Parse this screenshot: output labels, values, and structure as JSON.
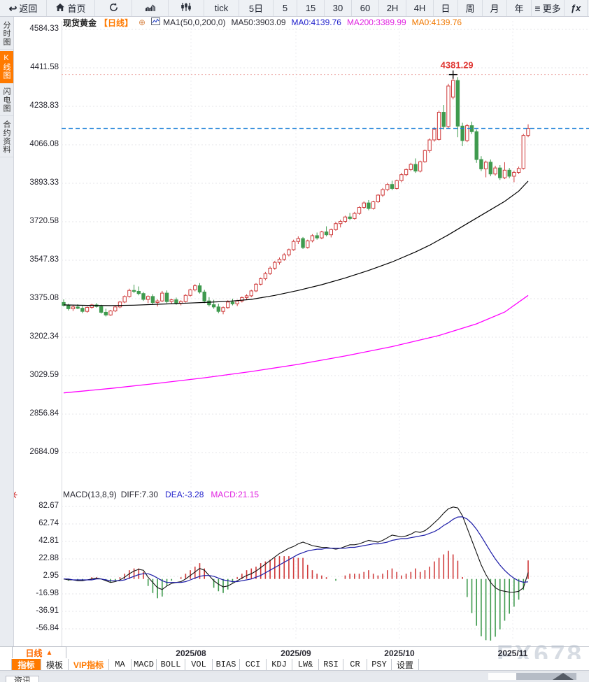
{
  "colors": {
    "up": "#cf3a3a",
    "down": "#3f9a4e",
    "ma50": "#000000",
    "ma200": "#ff00ff",
    "diff": "#111111",
    "dea": "#1a1aa6",
    "price_line": "#1b7fd8",
    "accent": "#ff7a00"
  },
  "toolbar": {
    "items": [
      {
        "label": "返回"
      },
      {
        "label": "首页"
      },
      {
        "label": ""
      },
      {
        "label": ""
      },
      {
        "label": ""
      },
      {
        "label": "tick"
      },
      {
        "label": "5日"
      },
      {
        "label": "5"
      },
      {
        "label": "15"
      },
      {
        "label": "30"
      },
      {
        "label": "60"
      },
      {
        "label": "2H"
      },
      {
        "label": "4H"
      },
      {
        "label": "日"
      },
      {
        "label": "周"
      },
      {
        "label": "月"
      },
      {
        "label": "年"
      },
      {
        "label": "更多"
      },
      {
        "label": "ƒx"
      },
      {
        "label": "⊖"
      },
      {
        "label": "⊕"
      }
    ],
    "more_icon": "≡",
    "back_icon": "↩"
  },
  "sidebar": {
    "items": [
      {
        "label": "分时图",
        "active": false
      },
      {
        "label": "K线图",
        "active": true
      },
      {
        "label": "闪电图",
        "active": false
      },
      {
        "label": "合约资料",
        "active": false
      }
    ]
  },
  "chart_header": {
    "symbol": "现货黄金",
    "period": "【日线】",
    "plus_icon": "⊕",
    "ma_params": "MA1(50,0,200,0)",
    "ma50": "MA50:3903.09",
    "ma0_blue": "MA0:4139.76",
    "ma200": "MA200:3389.99",
    "ma0_orange": "MA0:4139.76"
  },
  "macd_header": {
    "params": "MACD(13,8,9)",
    "diff": "DIFF:7.30",
    "dea": "DEA:-3.28",
    "macd": "MACD:21.15"
  },
  "bottom": {
    "period": "日线",
    "period_arrow": "▲",
    "news_tab": "资讯",
    "tabs": [
      {
        "label": "指标"
      },
      {
        "label": "模板"
      },
      {
        "label": "VIP指标"
      },
      {
        "label": "MA"
      },
      {
        "label": "MACD"
      },
      {
        "label": "BOLL"
      },
      {
        "label": "VOL"
      },
      {
        "label": "BIAS"
      },
      {
        "label": "CCI"
      },
      {
        "label": "KDJ"
      },
      {
        "label": "LW&"
      },
      {
        "label": "RSI"
      },
      {
        "label": "CR"
      },
      {
        "label": "PSY"
      },
      {
        "label": "设置"
      }
    ]
  },
  "watermark": "FX678",
  "chart_data": [
    {
      "type": "candlestick",
      "title": "现货黄金 日线",
      "yticks": [
        "4584.33",
        "4411.58",
        "4238.83",
        "4066.08",
        "3893.33",
        "3720.58",
        "3547.83",
        "3375.08",
        "3202.34",
        "3029.59",
        "2856.84",
        "2684.09"
      ],
      "ylim": [
        2684.09,
        4584.33
      ],
      "x_tick_labels": [
        "2025/08",
        "2025/09",
        "2025/10",
        "2025/11"
      ],
      "annotation_high": "4381.29",
      "high_value": 4381.29,
      "high_index": 83,
      "last_close": 4139.76,
      "legend": [
        "MA50 black",
        "MA200 magenta",
        "last-price dashed blue"
      ],
      "candles": [
        [
          3358,
          3372,
          3340,
          3345
        ],
        [
          3345,
          3352,
          3322,
          3330
        ],
        [
          3330,
          3345,
          3320,
          3338
        ],
        [
          3338,
          3350,
          3328,
          3332
        ],
        [
          3332,
          3342,
          3310,
          3318
        ],
        [
          3318,
          3340,
          3312,
          3336
        ],
        [
          3336,
          3352,
          3330,
          3347
        ],
        [
          3347,
          3355,
          3335,
          3340
        ],
        [
          3340,
          3348,
          3308,
          3314
        ],
        [
          3314,
          3330,
          3295,
          3302
        ],
        [
          3302,
          3325,
          3298,
          3320
        ],
        [
          3320,
          3342,
          3315,
          3338
        ],
        [
          3338,
          3365,
          3332,
          3360
        ],
        [
          3360,
          3390,
          3355,
          3385
        ],
        [
          3385,
          3420,
          3380,
          3412
        ],
        [
          3412,
          3438,
          3400,
          3408
        ],
        [
          3408,
          3430,
          3390,
          3398
        ],
        [
          3398,
          3405,
          3365,
          3372
        ],
        [
          3372,
          3390,
          3355,
          3385
        ],
        [
          3385,
          3395,
          3350,
          3358
        ],
        [
          3358,
          3372,
          3340,
          3365
        ],
        [
          3365,
          3410,
          3360,
          3400
        ],
        [
          3400,
          3412,
          3355,
          3362
        ],
        [
          3362,
          3375,
          3352,
          3370
        ],
        [
          3370,
          3380,
          3348,
          3355
        ],
        [
          3355,
          3368,
          3345,
          3362
        ],
        [
          3362,
          3395,
          3358,
          3390
        ],
        [
          3390,
          3420,
          3385,
          3415
        ],
        [
          3415,
          3440,
          3408,
          3433
        ],
        [
          3433,
          3445,
          3398,
          3405
        ],
        [
          3405,
          3415,
          3355,
          3365
        ],
        [
          3365,
          3382,
          3340,
          3348
        ],
        [
          3348,
          3370,
          3330,
          3338
        ],
        [
          3338,
          3352,
          3310,
          3318
        ],
        [
          3318,
          3340,
          3305,
          3335
        ],
        [
          3335,
          3368,
          3330,
          3360
        ],
        [
          3360,
          3375,
          3345,
          3352
        ],
        [
          3352,
          3370,
          3342,
          3365
        ],
        [
          3365,
          3385,
          3358,
          3380
        ],
        [
          3380,
          3395,
          3370,
          3388
        ],
        [
          3388,
          3415,
          3382,
          3410
        ],
        [
          3410,
          3445,
          3405,
          3440
        ],
        [
          3440,
          3470,
          3435,
          3465
        ],
        [
          3465,
          3495,
          3458,
          3488
        ],
        [
          3488,
          3520,
          3482,
          3512
        ],
        [
          3512,
          3545,
          3505,
          3538
        ],
        [
          3538,
          3560,
          3528,
          3552
        ],
        [
          3552,
          3580,
          3545,
          3572
        ],
        [
          3572,
          3600,
          3565,
          3595
        ],
        [
          3595,
          3640,
          3590,
          3632
        ],
        [
          3632,
          3655,
          3620,
          3645
        ],
        [
          3645,
          3652,
          3598,
          3605
        ],
        [
          3605,
          3640,
          3600,
          3635
        ],
        [
          3635,
          3665,
          3628,
          3658
        ],
        [
          3658,
          3672,
          3640,
          3648
        ],
        [
          3648,
          3680,
          3642,
          3675
        ],
        [
          3675,
          3700,
          3655,
          3662
        ],
        [
          3662,
          3690,
          3650,
          3685
        ],
        [
          3685,
          3720,
          3680,
          3712
        ],
        [
          3712,
          3730,
          3695,
          3722
        ],
        [
          3722,
          3748,
          3715,
          3742
        ],
        [
          3742,
          3760,
          3728,
          3735
        ],
        [
          3735,
          3765,
          3730,
          3758
        ],
        [
          3758,
          3790,
          3752,
          3785
        ],
        [
          3785,
          3812,
          3778,
          3805
        ],
        [
          3805,
          3818,
          3772,
          3780
        ],
        [
          3780,
          3815,
          3775,
          3810
        ],
        [
          3810,
          3845,
          3805,
          3840
        ],
        [
          3840,
          3872,
          3832,
          3865
        ],
        [
          3865,
          3895,
          3858,
          3888
        ],
        [
          3888,
          3905,
          3862,
          3870
        ],
        [
          3870,
          3910,
          3865,
          3905
        ],
        [
          3905,
          3940,
          3898,
          3932
        ],
        [
          3932,
          3960,
          3925,
          3955
        ],
        [
          3955,
          3985,
          3948,
          3978
        ],
        [
          3978,
          4005,
          3940,
          3948
        ],
        [
          3948,
          3995,
          3942,
          3990
        ],
        [
          3990,
          4045,
          3985,
          4040
        ],
        [
          4040,
          4095,
          4030,
          4088
        ],
        [
          4088,
          4145,
          4080,
          4135
        ],
        [
          4090,
          4220,
          4085,
          4212
        ],
        [
          4212,
          4245,
          4135,
          4148
        ],
        [
          4148,
          4340,
          4142,
          4330
        ],
        [
          4280,
          4381.29,
          4270,
          4355
        ],
        [
          4355,
          4370,
          4100,
          4150
        ],
        [
          4150,
          4165,
          4060,
          4085
        ],
        [
          4085,
          4160,
          4078,
          4152
        ],
        [
          4152,
          4170,
          4115,
          4125
        ],
        [
          4125,
          4135,
          3985,
          4000
        ],
        [
          4000,
          4015,
          3948,
          3958
        ],
        [
          3958,
          3995,
          3920,
          3988
        ],
        [
          3988,
          4000,
          3925,
          3935
        ],
        [
          3935,
          3972,
          3928,
          3962
        ],
        [
          3962,
          3975,
          3908,
          3918
        ],
        [
          3918,
          3988,
          3912,
          3952
        ],
        [
          3952,
          3962,
          3916,
          3925
        ],
        [
          3925,
          3950,
          3898,
          3942
        ],
        [
          3942,
          3968,
          3935,
          3960
        ],
        [
          3960,
          4115,
          3955,
          4108
        ],
        [
          4108,
          4158,
          4100,
          4139.76
        ]
      ],
      "ma50_points": [
        [
          0,
          3347
        ],
        [
          5,
          3345
        ],
        [
          10,
          3344
        ],
        [
          15,
          3346
        ],
        [
          20,
          3350
        ],
        [
          25,
          3354
        ],
        [
          30,
          3358
        ],
        [
          35,
          3363
        ],
        [
          40,
          3372
        ],
        [
          45,
          3390
        ],
        [
          50,
          3412
        ],
        [
          55,
          3438
        ],
        [
          60,
          3468
        ],
        [
          65,
          3502
        ],
        [
          70,
          3540
        ],
        [
          75,
          3585
        ],
        [
          78,
          3615
        ],
        [
          82,
          3662
        ],
        [
          86,
          3712
        ],
        [
          90,
          3762
        ],
        [
          94,
          3812
        ],
        [
          97,
          3858
        ],
        [
          99,
          3903
        ]
      ],
      "ma200_points": [
        [
          0,
          2952
        ],
        [
          10,
          2972
        ],
        [
          20,
          2995
        ],
        [
          30,
          3020
        ],
        [
          40,
          3048
        ],
        [
          50,
          3080
        ],
        [
          60,
          3118
        ],
        [
          70,
          3160
        ],
        [
          80,
          3210
        ],
        [
          88,
          3262
        ],
        [
          94,
          3315
        ],
        [
          99,
          3390
        ]
      ]
    },
    {
      "type": "macd",
      "params": [
        13,
        8,
        9
      ],
      "yticks": [
        "82.67",
        "62.74",
        "42.81",
        "22.88",
        "2.95",
        "-16.98",
        "-36.91",
        "-56.84"
      ],
      "diff": [
        0,
        -1,
        -1,
        -2,
        -2,
        -1,
        0,
        1,
        0,
        -2,
        -4,
        -3,
        -1,
        2,
        6,
        9,
        11,
        10,
        2,
        -4,
        -10,
        -12,
        -8,
        -5,
        -4,
        -3,
        0,
        4,
        8,
        12,
        10,
        4,
        -2,
        -6,
        -9,
        -8,
        -5,
        -2,
        1,
        4,
        6,
        9,
        13,
        17,
        21,
        25,
        29,
        32,
        35,
        37,
        40,
        42,
        40,
        38,
        37,
        36,
        36,
        35,
        34,
        35,
        37,
        39,
        39,
        40,
        42,
        44,
        43,
        42,
        44,
        47,
        50,
        49,
        48,
        49,
        51,
        54,
        53,
        55,
        59,
        64,
        69,
        75,
        80,
        82,
        81,
        72,
        58,
        44,
        30,
        16,
        5,
        -4,
        -10,
        -13,
        -14,
        -15,
        -15,
        -14,
        -10,
        7.3
      ],
      "dea": [
        0,
        0,
        -1,
        -1,
        -1,
        -1,
        -1,
        0,
        0,
        -1,
        -2,
        -2,
        -2,
        -1,
        1,
        3,
        5,
        6,
        6,
        4,
        1,
        -2,
        -4,
        -4,
        -4,
        -4,
        -3,
        -1,
        1,
        3,
        4,
        4,
        3,
        1,
        -1,
        -2,
        -3,
        -3,
        -2,
        -1,
        0,
        2,
        4,
        7,
        10,
        13,
        16,
        19,
        22,
        25,
        28,
        30,
        32,
        33,
        34,
        34,
        35,
        35,
        35,
        35,
        35,
        36,
        36,
        37,
        38,
        39,
        40,
        40,
        41,
        42,
        44,
        45,
        46,
        46,
        47,
        48,
        49,
        50,
        52,
        54,
        57,
        61,
        64,
        68,
        70.6,
        70.9,
        68.3,
        63.4,
        56.7,
        48.6,
        39.9,
        31.1,
        22.9,
        15.7,
        9.8,
        4.8,
        0.8,
        -2.2,
        -3.76,
        -3.28
      ],
      "histogram_rule": "2*(diff-dea)"
    }
  ]
}
